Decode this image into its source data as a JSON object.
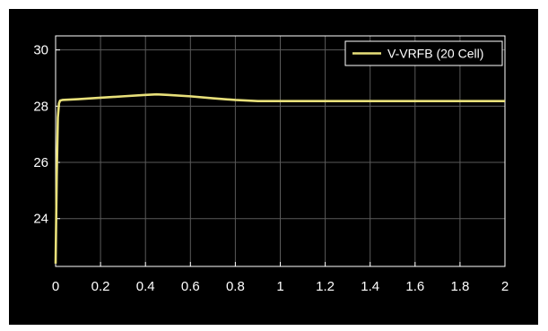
{
  "chart_data": {
    "type": "line",
    "title": "",
    "xlabel": "",
    "ylabel": "",
    "xlim": [
      0,
      2
    ],
    "ylim": [
      22.3,
      30.5
    ],
    "xticks": [
      0,
      0.2,
      0.4,
      0.6,
      0.8,
      1,
      1.2,
      1.4,
      1.6,
      1.8,
      2
    ],
    "xtick_labels": [
      "0",
      "0.2",
      "0.4",
      "0.6",
      "0.8",
      "1",
      "1.2",
      "1.4",
      "1.6",
      "1.8",
      "2"
    ],
    "yticks": [
      24,
      26,
      28,
      30
    ],
    "ytick_labels": [
      "24",
      "26",
      "28",
      "30"
    ],
    "grid": true,
    "legend_position": "top-right",
    "background_color": "#000000",
    "axes_color": "#ffffff",
    "grid_color": "#5a5a5a",
    "series": [
      {
        "name": "V-VRFB (20 Cell)",
        "color": "#e8e07a",
        "x": [
          0,
          0.005,
          0.01,
          0.015,
          0.02,
          0.03,
          0.1,
          0.2,
          0.3,
          0.4,
          0.45,
          0.5,
          0.6,
          0.7,
          0.8,
          0.9,
          1.0,
          1.2,
          1.4,
          1.6,
          1.8,
          2.0
        ],
        "y": [
          22.4,
          25.5,
          27.6,
          28.1,
          28.2,
          28.22,
          28.25,
          28.3,
          28.35,
          28.4,
          28.42,
          28.4,
          28.35,
          28.28,
          28.22,
          28.18,
          28.18,
          28.18,
          28.18,
          28.18,
          28.18,
          28.18
        ]
      }
    ]
  }
}
